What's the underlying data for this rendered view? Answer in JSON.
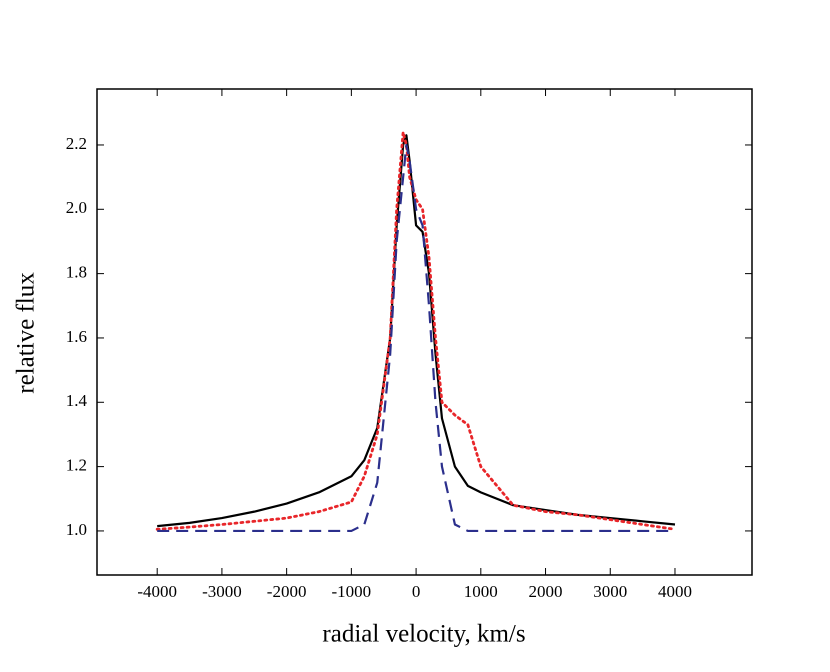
{
  "chart_data": {
    "type": "line",
    "xlabel": "radial velocity, km/s",
    "ylabel": "relative flux",
    "x": [
      -4000,
      -3500,
      -3000,
      -2500,
      -2000,
      -1500,
      -1000,
      -800,
      -600,
      -400,
      -300,
      -200,
      -150,
      -100,
      0,
      100,
      200,
      300,
      400,
      600,
      800,
      1000,
      1500,
      2000,
      2500,
      3000,
      3500,
      4000
    ],
    "series": [
      {
        "color": "#000000",
        "style": "solid",
        "values": [
          1.015,
          1.025,
          1.04,
          1.06,
          1.085,
          1.12,
          1.17,
          1.22,
          1.32,
          1.6,
          1.95,
          2.2,
          2.23,
          2.15,
          1.95,
          1.93,
          1.8,
          1.55,
          1.35,
          1.2,
          1.14,
          1.12,
          1.08,
          1.065,
          1.05,
          1.04,
          1.03,
          1.02
        ]
      },
      {
        "color": "#e8262a",
        "style": "dotted",
        "values": [
          1.005,
          1.012,
          1.02,
          1.03,
          1.04,
          1.06,
          1.09,
          1.17,
          1.3,
          1.6,
          2.0,
          2.24,
          2.2,
          2.1,
          2.03,
          2.0,
          1.85,
          1.6,
          1.4,
          1.36,
          1.33,
          1.2,
          1.08,
          1.06,
          1.05,
          1.035,
          1.02,
          1.005
        ]
      },
      {
        "color": "#2b2f8c",
        "style": "dashed",
        "values": [
          1.0,
          1.0,
          1.0,
          1.0,
          1.0,
          1.0,
          1.0,
          1.02,
          1.15,
          1.55,
          1.9,
          2.1,
          2.2,
          2.15,
          2.0,
          1.95,
          1.7,
          1.4,
          1.2,
          1.02,
          1.0,
          1.0,
          1.0,
          1.0,
          1.0,
          1.0,
          1.0,
          1.0
        ]
      }
    ],
    "xlim": [
      -4930,
      5190
    ],
    "ylim": [
      0.863,
      2.374
    ],
    "xticks": [
      -4000,
      -3000,
      -2000,
      -1000,
      0,
      1000,
      2000,
      3000,
      4000
    ],
    "yticks": [
      {
        "value": 1,
        "label": "1.0"
      },
      1.2,
      1.4,
      1.6,
      1.8,
      {
        "value": 2,
        "label": "2.0"
      },
      2.2
    ],
    "grid": false
  }
}
